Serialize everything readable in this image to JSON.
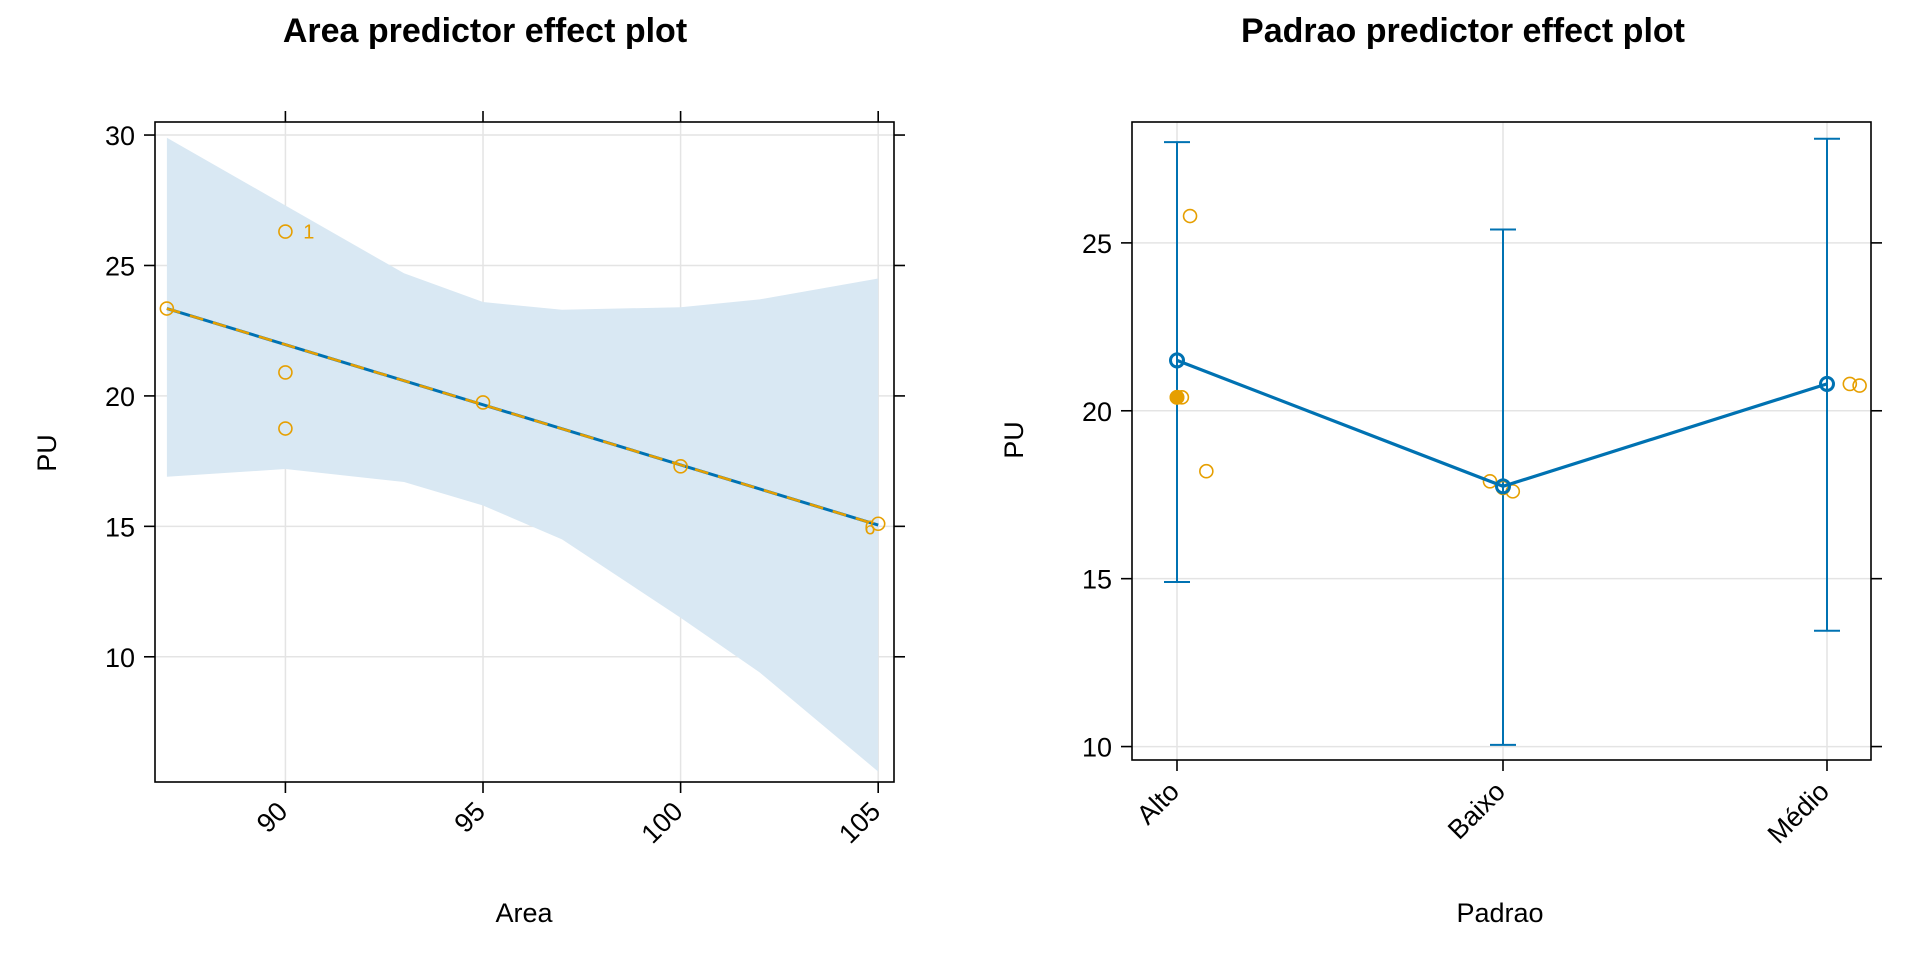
{
  "colors": {
    "fit": "#0072B2",
    "band": "#d9e8f3",
    "points": "#E69F00",
    "grid": "#e4e4e4",
    "frame": "#000000"
  },
  "chart_data": [
    {
      "type": "line",
      "title": "Area predictor effect plot",
      "xlabel": "Area",
      "ylabel": "PU",
      "xlim": [
        86.7,
        105.4
      ],
      "ylim": [
        5.2,
        30.5
      ],
      "xticks": [
        90,
        95,
        100,
        105
      ],
      "yticks": [
        10,
        15,
        20,
        25,
        30
      ],
      "grid": true,
      "fit": {
        "x": [
          87,
          105
        ],
        "y": [
          23.35,
          15.05
        ]
      },
      "confidence_band": {
        "x": [
          87,
          90,
          93,
          95,
          97,
          100,
          102,
          105
        ],
        "upper": [
          29.9,
          27.3,
          24.7,
          23.6,
          23.3,
          23.4,
          23.7,
          24.5
        ],
        "lower": [
          16.9,
          17.2,
          16.7,
          15.8,
          14.5,
          11.5,
          9.4,
          5.6
        ]
      },
      "points": {
        "x": [
          87,
          90,
          90,
          90,
          95,
          100,
          105
        ],
        "y": [
          23.35,
          26.3,
          20.9,
          18.75,
          19.75,
          17.3,
          15.1
        ]
      },
      "point_labels": [
        {
          "text": "1",
          "x": 90.4,
          "y": 26.3
        },
        {
          "text": "6",
          "x": 104.6,
          "y": 14.95
        }
      ]
    },
    {
      "type": "line",
      "title": "Padrao predictor effect plot",
      "xlabel": "Padrao",
      "ylabel": "PU",
      "categories": [
        "Alto",
        "Baixo",
        "Médio"
      ],
      "ylim": [
        9.6,
        28.6
      ],
      "yticks": [
        10,
        15,
        20,
        25
      ],
      "grid": true,
      "fit": [
        21.5,
        17.75,
        20.8
      ],
      "ci_upper": [
        28.0,
        25.4,
        28.1
      ],
      "ci_lower": [
        14.9,
        10.05,
        13.45
      ],
      "points": [
        {
          "category": "Alto",
          "offset": 0.04,
          "y": 25.8
        },
        {
          "category": "Alto",
          "offset": 0.0,
          "y": 20.4
        },
        {
          "category": "Alto",
          "offset": 0.015,
          "y": 20.4
        },
        {
          "category": "Alto",
          "offset": 0.09,
          "y": 18.2
        },
        {
          "category": "Baixo",
          "offset": -0.04,
          "y": 17.9
        },
        {
          "category": "Baixo",
          "offset": 0.0,
          "y": 17.7
        },
        {
          "category": "Baixo",
          "offset": 0.03,
          "y": 17.6
        },
        {
          "category": "Médio",
          "offset": 0.0,
          "y": 20.8
        },
        {
          "category": "Médio",
          "offset": 0.07,
          "y": 20.8
        },
        {
          "category": "Médio",
          "offset": 0.1,
          "y": 20.75
        }
      ]
    }
  ]
}
